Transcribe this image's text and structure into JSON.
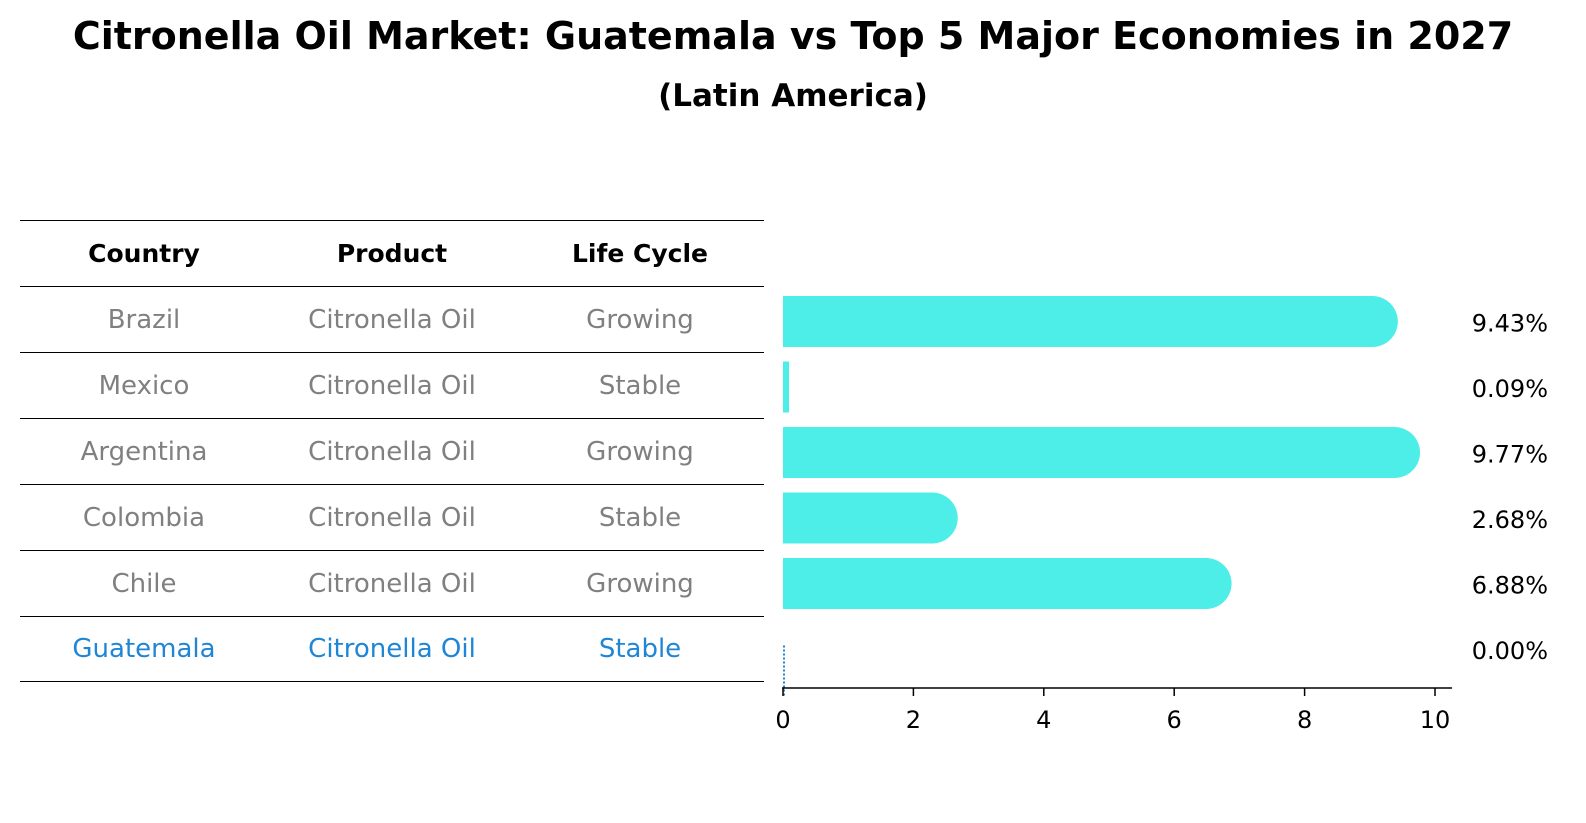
{
  "chart_data": {
    "type": "bar",
    "orientation": "horizontal",
    "title": "Citronella Oil Market: Guatemala vs Top 5 Major Economies in 2027",
    "subtitle": "(Latin America)",
    "table": {
      "columns": [
        "Country",
        "Product",
        "Life Cycle"
      ],
      "rows": [
        {
          "country": "Brazil",
          "product": "Citronella Oil",
          "life_cycle": "Growing"
        },
        {
          "country": "Mexico",
          "product": "Citronella Oil",
          "life_cycle": "Stable"
        },
        {
          "country": "Argentina",
          "product": "Citronella Oil",
          "life_cycle": "Growing"
        },
        {
          "country": "Colombia",
          "product": "Citronella Oil",
          "life_cycle": "Stable"
        },
        {
          "country": "Chile",
          "product": "Citronella Oil",
          "life_cycle": "Growing"
        },
        {
          "country": "Guatemala",
          "product": "Citronella Oil",
          "life_cycle": "Stable"
        }
      ],
      "highlight_row": "Guatemala"
    },
    "categories": [
      "Brazil",
      "Mexico",
      "Argentina",
      "Colombia",
      "Chile",
      "Guatemala"
    ],
    "values": [
      9.43,
      0.09,
      9.77,
      2.68,
      6.88,
      0.0
    ],
    "value_labels": [
      "9.43%",
      "0.09%",
      "9.77%",
      "2.68%",
      "6.88%",
      "0.00%"
    ],
    "xlim": [
      0,
      10
    ],
    "xticks": [
      "0",
      "2",
      "4",
      "6",
      "8",
      "10"
    ],
    "xtick_values": [
      0,
      2,
      4,
      6,
      8,
      10
    ],
    "xlabel": "",
    "ylabel": "",
    "grid": false,
    "colors": {
      "bar": "#4dede8",
      "highlight_text": "#1f86d6",
      "row_text": "#808080",
      "header_text": "#000000"
    }
  }
}
